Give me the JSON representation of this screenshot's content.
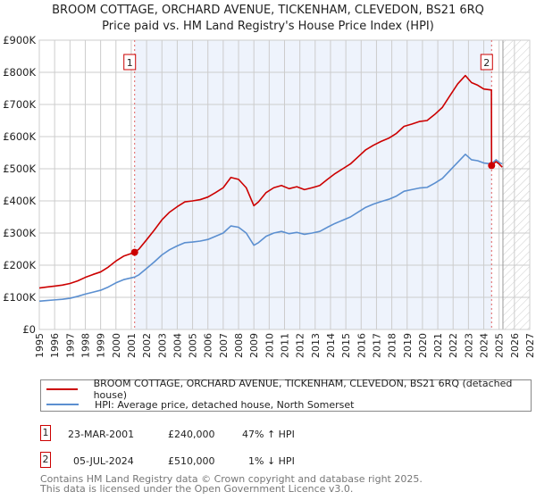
{
  "title": "BROOM COTTAGE, ORCHARD AVENUE, TICKENHAM, CLEVEDON, BS21 6RQ",
  "subtitle": "Price paid vs. HM Land Registry's House Price Index (HPI)",
  "colors": {
    "property": "#cc0000",
    "hpi": "#5b8fd0",
    "shade": "#eef3fc"
  },
  "legend": {
    "property": "BROOM COTTAGE, ORCHARD AVENUE, TICKENHAM, CLEVEDON, BS21 6RQ (detached house)",
    "hpi": "HPI: Average price, detached house, North Somerset"
  },
  "sales": [
    {
      "num": "1",
      "date": "23-MAR-2001",
      "price": "£240,000",
      "hpi": "47% ↑ HPI",
      "x": 2001.22,
      "y": 240
    },
    {
      "num": "2",
      "date": "05-JUL-2024",
      "price": "£510,000",
      "hpi": "1% ↓ HPI",
      "x": 2024.51,
      "y": 510
    }
  ],
  "footer": [
    "Contains HM Land Registry data © Crown copyright and database right 2025.",
    "This data is licensed under the Open Government Licence v3.0."
  ],
  "chart_data": {
    "type": "line",
    "xlim": [
      1995,
      2027
    ],
    "ylim": [
      0,
      900
    ],
    "forecast_start": 2025.25,
    "yticks": [
      {
        "v": 0,
        "l": "£0"
      },
      {
        "v": 100,
        "l": "£100K"
      },
      {
        "v": 200,
        "l": "£200K"
      },
      {
        "v": 300,
        "l": "£300K"
      },
      {
        "v": 400,
        "l": "£400K"
      },
      {
        "v": 500,
        "l": "£500K"
      },
      {
        "v": 600,
        "l": "£600K"
      },
      {
        "v": 700,
        "l": "£700K"
      },
      {
        "v": 800,
        "l": "£800K"
      },
      {
        "v": 900,
        "l": "£900K"
      }
    ],
    "xticks": [
      "1995",
      "1996",
      "1997",
      "1998",
      "1999",
      "2000",
      "2001",
      "2002",
      "2003",
      "2004",
      "2005",
      "2006",
      "2007",
      "2008",
      "2009",
      "2010",
      "2011",
      "2012",
      "2013",
      "2014",
      "2015",
      "2016",
      "2017",
      "2018",
      "2019",
      "2020",
      "2021",
      "2022",
      "2023",
      "2024",
      "2025",
      "2026",
      "2027"
    ],
    "series": [
      {
        "name": "HPI",
        "unit": "£K",
        "x": [
          1995,
          1995.5,
          1996,
          1996.5,
          1997,
          1997.5,
          1998,
          1998.5,
          1999,
          1999.5,
          2000,
          2000.5,
          2001.22,
          2001.5,
          2002,
          2002.5,
          2003,
          2003.5,
          2004,
          2004.5,
          2005,
          2005.5,
          2006,
          2006.5,
          2007,
          2007.5,
          2008,
          2008.5,
          2009,
          2009.3,
          2009.8,
          2010.3,
          2010.8,
          2011.3,
          2011.8,
          2012.3,
          2012.8,
          2013.3,
          2013.8,
          2014.3,
          2014.8,
          2015.3,
          2015.8,
          2016.3,
          2016.8,
          2017.3,
          2017.8,
          2018.3,
          2018.8,
          2019.3,
          2019.8,
          2020.3,
          2020.8,
          2021.3,
          2021.8,
          2022.3,
          2022.8,
          2023.2,
          2023.6,
          2024.0,
          2024.5,
          2024.8,
          2025.0,
          2025.2
        ],
        "y": [
          88,
          90,
          92,
          94,
          97,
          103,
          110,
          116,
          122,
          132,
          145,
          155,
          163,
          170,
          190,
          210,
          232,
          248,
          260,
          270,
          272,
          275,
          280,
          290,
          300,
          322,
          318,
          300,
          262,
          270,
          290,
          300,
          305,
          298,
          302,
          296,
          300,
          305,
          318,
          330,
          340,
          350,
          365,
          380,
          390,
          398,
          405,
          415,
          430,
          435,
          440,
          442,
          455,
          470,
          495,
          520,
          545,
          528,
          525,
          518,
          515,
          528,
          520,
          515
        ]
      },
      {
        "name": "Property",
        "unit": "£K",
        "x": [
          1995,
          1995.5,
          1996,
          1996.5,
          1997,
          1997.5,
          1998,
          1998.5,
          1999,
          1999.5,
          2000,
          2000.5,
          2001.22,
          2001.5,
          2002,
          2002.5,
          2003,
          2003.5,
          2004,
          2004.5,
          2005,
          2005.5,
          2006,
          2006.5,
          2007,
          2007.5,
          2008,
          2008.5,
          2009,
          2009.3,
          2009.8,
          2010.3,
          2010.8,
          2011.3,
          2011.8,
          2012.3,
          2012.8,
          2013.3,
          2013.8,
          2014.3,
          2014.8,
          2015.3,
          2015.8,
          2016.3,
          2016.8,
          2017.3,
          2017.8,
          2018.3,
          2018.8,
          2019.3,
          2019.8,
          2020.3,
          2020.8,
          2021.3,
          2021.8,
          2022.3,
          2022.8,
          2023.2,
          2023.6,
          2024.0,
          2024.5,
          2024.51,
          2024.8,
          2025.0,
          2025.2
        ],
        "y": [
          129,
          132,
          135,
          138,
          143,
          151,
          162,
          171,
          179,
          194,
          213,
          228,
          240,
          250,
          279,
          309,
          341,
          365,
          382,
          397,
          400,
          404,
          412,
          426,
          441,
          473,
          467,
          441,
          385,
          397,
          426,
          441,
          448,
          438,
          444,
          435,
          441,
          448,
          467,
          485,
          500,
          515,
          537,
          559,
          573,
          585,
          595,
          610,
          632,
          639,
          647,
          650,
          669,
          691,
          728,
          764,
          790,
          768,
          760,
          748,
          745,
          510,
          522,
          515,
          505
        ]
      }
    ]
  }
}
